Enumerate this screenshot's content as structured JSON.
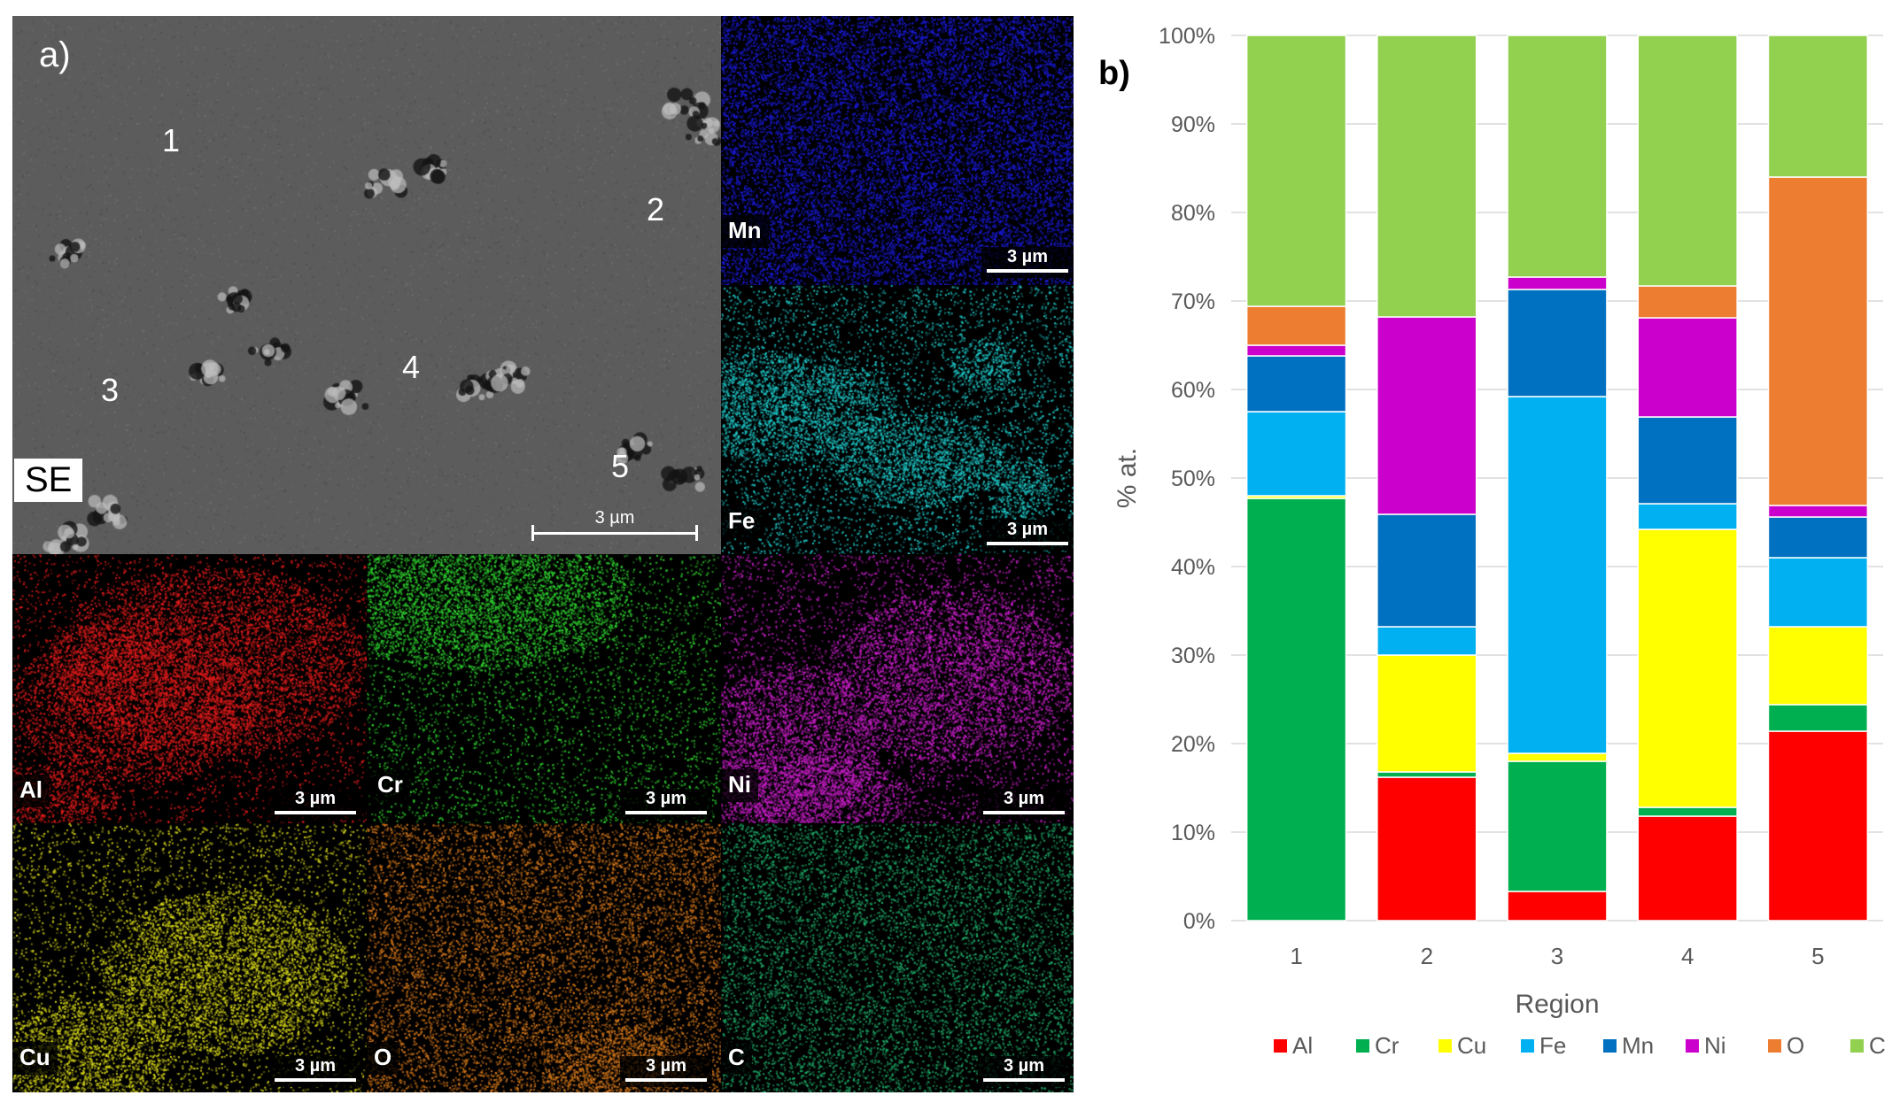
{
  "panel_a": {
    "label": "a)",
    "se_label": "SE",
    "se_scale_label": "3 µm",
    "regions": [
      "1",
      "2",
      "3",
      "4",
      "5"
    ],
    "maps": [
      {
        "element": "Mn",
        "color": "#1a1ad6",
        "scale_label": "3 µm"
      },
      {
        "element": "Fe",
        "color": "#1fc8c8",
        "scale_label": "3 µm"
      },
      {
        "element": "Al",
        "color": "#e01b1b",
        "scale_label": "3 µm"
      },
      {
        "element": "Cr",
        "color": "#2fd42f",
        "scale_label": "3 µm"
      },
      {
        "element": "Ni",
        "color": "#c81ec8",
        "scale_label": "3 µm"
      },
      {
        "element": "Cu",
        "color": "#d6d61a",
        "scale_label": "3 µm"
      },
      {
        "element": "O",
        "color": "#d6781a",
        "scale_label": "3 µm"
      },
      {
        "element": "C",
        "color": "#1fae6a",
        "scale_label": "3 µm"
      }
    ]
  },
  "panel_b": {
    "label": "b)"
  },
  "chart_data": {
    "type": "bar",
    "stacked": true,
    "categories": [
      "1",
      "2",
      "3",
      "4",
      "5"
    ],
    "xlabel": "Region",
    "ylabel": "% at.",
    "ylim": [
      0,
      100
    ],
    "yticks": [
      "0%",
      "10%",
      "20%",
      "30%",
      "40%",
      "50%",
      "60%",
      "70%",
      "80%",
      "90%",
      "100%"
    ],
    "legend_position": "bottom",
    "grid": true,
    "series": [
      {
        "name": "Al",
        "color": "#ff0000",
        "values": [
          0,
          16.2,
          3.3,
          11.8,
          21.4
        ]
      },
      {
        "name": "Cr",
        "color": "#00b050",
        "values": [
          47.7,
          0.6,
          14.7,
          1.0,
          3.0
        ]
      },
      {
        "name": "Cu",
        "color": "#ffff00",
        "values": [
          0.3,
          13.2,
          0.9,
          31.4,
          8.8
        ]
      },
      {
        "name": "Fe",
        "color": "#00b0f0",
        "values": [
          9.5,
          3.2,
          40.3,
          2.9,
          7.8
        ]
      },
      {
        "name": "Mn",
        "color": "#0070c0",
        "values": [
          6.3,
          12.7,
          12.1,
          9.8,
          4.6
        ]
      },
      {
        "name": "Ni",
        "color": "#cc00cc",
        "values": [
          1.2,
          22.3,
          1.4,
          11.2,
          1.3
        ]
      },
      {
        "name": "O",
        "color": "#ed7d31",
        "values": [
          4.4,
          0,
          0,
          3.6,
          37.1
        ]
      },
      {
        "name": "C",
        "color": "#92d050",
        "values": [
          30.6,
          31.8,
          27.3,
          28.3,
          16.0
        ]
      }
    ]
  }
}
